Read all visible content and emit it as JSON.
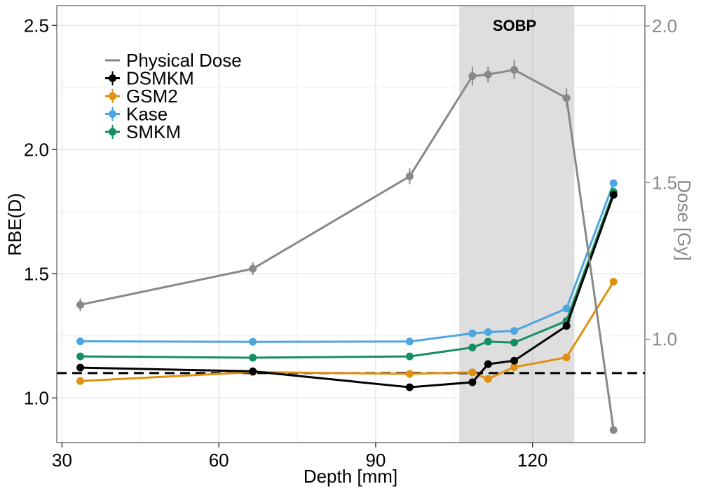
{
  "chart_data": {
    "type": "line",
    "xlabel": "Depth [mm]",
    "ylabel": "RBE(D)",
    "y2label": "Dose [Gy]",
    "xlim": [
      29,
      141.5
    ],
    "ylim": [
      0.82,
      2.58
    ],
    "y2lim": [
      0.67,
      2.065
    ],
    "xticks": [
      30,
      60,
      90,
      120
    ],
    "xticks_minor": [
      45,
      75,
      105,
      135
    ],
    "yticks": [
      1.0,
      1.5,
      2.0,
      2.5
    ],
    "yticks_labels": [
      "1.0",
      "1.5",
      "2.0",
      "2.5"
    ],
    "yticks_minor": [
      1.25,
      1.75,
      2.25
    ],
    "y2ticks": [
      1.0,
      1.5,
      2.0
    ],
    "y2ticks_labels": [
      "1.0",
      "1.5",
      "2.0"
    ],
    "reference_line": {
      "y": 1.1,
      "style": "dashed",
      "color": "#000000"
    },
    "shaded_region": {
      "x0": 106,
      "x1": 128,
      "label": "SOBP",
      "color": "#dedede"
    },
    "x": [
      33.5,
      66.5,
      96.5,
      108.5,
      111.5,
      116.5,
      126.5,
      135.5
    ],
    "series": [
      {
        "name": "Kase",
        "color": "#4da6e0",
        "axis": "left",
        "values": [
          1.228,
          1.226,
          1.227,
          1.26,
          1.265,
          1.27,
          1.36,
          1.865
        ]
      },
      {
        "name": "SMKM",
        "color": "#148f61",
        "axis": "left",
        "values": [
          1.167,
          1.162,
          1.167,
          1.203,
          1.227,
          1.223,
          1.31,
          1.83
        ]
      },
      {
        "name": "GSM2",
        "color": "#e09010",
        "axis": "left",
        "values": [
          1.068,
          1.104,
          1.097,
          1.103,
          1.076,
          1.124,
          1.163,
          1.468
        ]
      },
      {
        "name": "DSMKM",
        "color": "#000000",
        "axis": "left",
        "values": [
          1.122,
          1.107,
          1.043,
          1.063,
          1.136,
          1.15,
          1.29,
          1.818
        ]
      },
      {
        "name": "Physical Dose",
        "color": "#888888",
        "axis": "right",
        "values": [
          1.11,
          1.225,
          1.52,
          1.84,
          1.845,
          1.86,
          1.77,
          0.71
        ],
        "errors": [
          0.02,
          0.02,
          0.025,
          0.03,
          0.025,
          0.03,
          0.03,
          0.01
        ]
      }
    ],
    "legend": {
      "position": "top-left",
      "entries": [
        {
          "name": "Physical Dose",
          "color": "#888888",
          "style": "line"
        },
        {
          "name": "DSMKM",
          "color": "#000000",
          "style": "point-line"
        },
        {
          "name": "GSM2",
          "color": "#e09010",
          "style": "point-line"
        },
        {
          "name": "Kase",
          "color": "#4da6e0",
          "style": "point-line"
        },
        {
          "name": "SMKM",
          "color": "#148f61",
          "style": "point-line"
        }
      ]
    },
    "grid": true
  }
}
